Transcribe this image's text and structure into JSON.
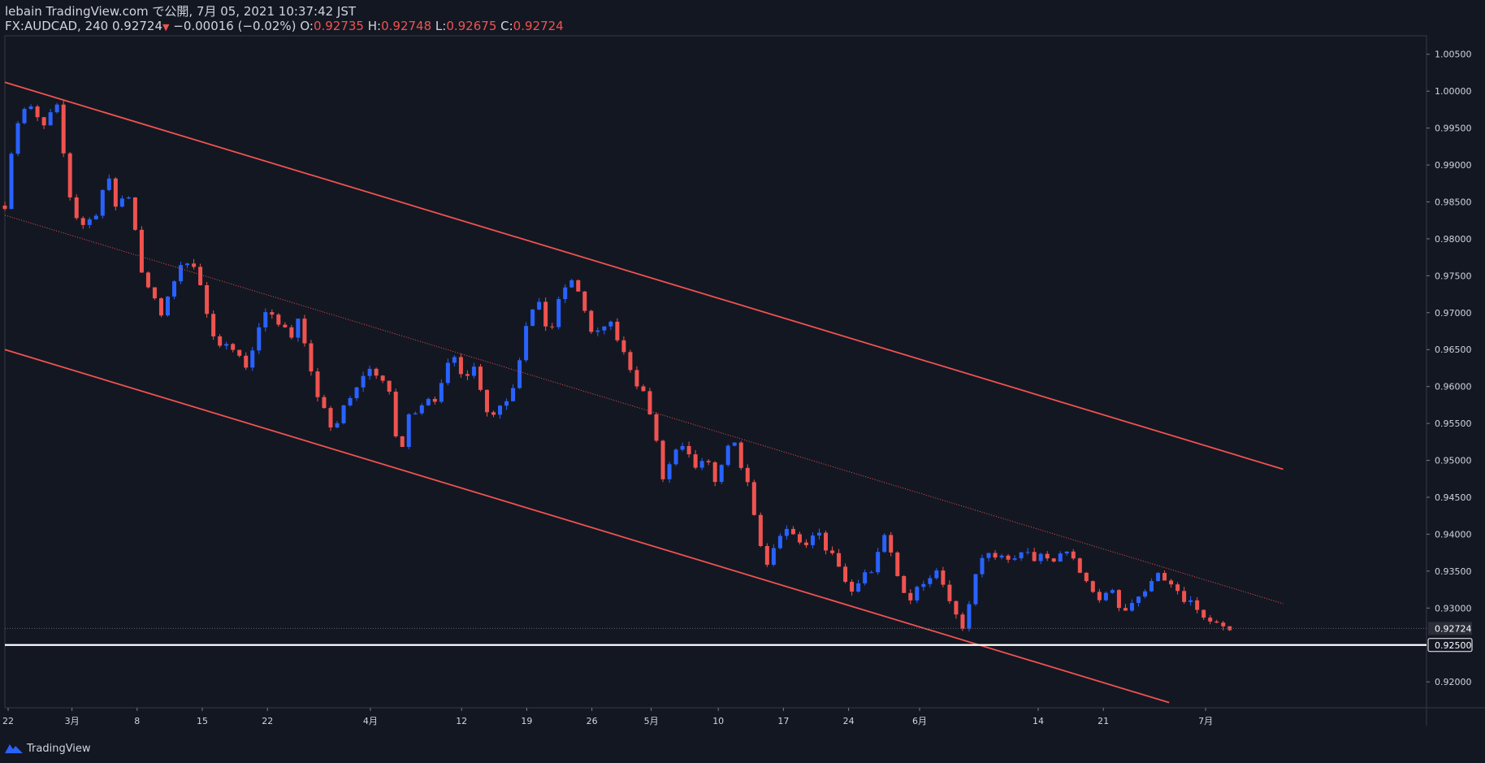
{
  "header": {
    "line1": "lebain TradingView.com で公開, 7月 05, 2021 10:37:42 JST",
    "symbol": "FX:AUDCAD, 240 0.92724",
    "change": "−0.00016 (−0.02%)",
    "open_label": "O:",
    "open": "0.92735",
    "high_label": "H:",
    "high": "0.92748",
    "low_label": "L:",
    "low": "0.92675",
    "close_label": "C:",
    "close": "0.92724",
    "down_arrow": "▼"
  },
  "footer": {
    "logo_text": "TradingView",
    "logo_icon": "tradingview-logo-icon"
  },
  "colors": {
    "background": "#131722",
    "up": "#2962ff",
    "down": "#ef5350",
    "channel": "#ef5350",
    "support": "#ffffff",
    "text": "#d1d4dc",
    "grid": "#2a2e39"
  },
  "chart_data": {
    "type": "candlestick",
    "symbol": "FX:AUDCAD",
    "timeframe": "240",
    "ylim": [
      0.9165,
      1.0075
    ],
    "y_ticks": [
      "1.00500",
      "1.00000",
      "0.99500",
      "0.99000",
      "0.98500",
      "0.98000",
      "0.97500",
      "0.97000",
      "0.96500",
      "0.96000",
      "0.95500",
      "0.95000",
      "0.94500",
      "0.94000",
      "0.93500",
      "0.93000",
      "0.92000"
    ],
    "x_ticks": [
      {
        "label": "22",
        "t": 0.5
      },
      {
        "label": "3月",
        "t": 10.3
      },
      {
        "label": "8",
        "t": 20.3
      },
      {
        "label": "15",
        "t": 30.3
      },
      {
        "label": "22",
        "t": 40.3
      },
      {
        "label": "4月",
        "t": 56.1
      },
      {
        "label": "12",
        "t": 70.1
      },
      {
        "label": "19",
        "t": 80.1
      },
      {
        "label": "26",
        "t": 90.1
      },
      {
        "label": "5月",
        "t": 99.2
      },
      {
        "label": "10",
        "t": 109.5
      },
      {
        "label": "17",
        "t": 119.5
      },
      {
        "label": "24",
        "t": 129.5
      },
      {
        "label": "6月",
        "t": 140.4
      },
      {
        "label": "14",
        "t": 158.6
      },
      {
        "label": "21",
        "t": 168.6
      },
      {
        "label": "7月",
        "t": 184.3
      }
    ],
    "price_path": [
      [
        0,
        0.9845
      ],
      [
        0.6,
        0.9895
      ],
      [
        1.3,
        0.9935
      ],
      [
        2.3,
        0.9968
      ],
      [
        3.6,
        0.9982
      ],
      [
        4.8,
        0.9965
      ],
      [
        6.0,
        0.9952
      ],
      [
        7.2,
        0.9972
      ],
      [
        8.0,
        0.9978
      ],
      [
        8.6,
        0.9945
      ],
      [
        9.4,
        0.9885
      ],
      [
        10.2,
        0.9848
      ],
      [
        11.2,
        0.9825
      ],
      [
        12.2,
        0.9818
      ],
      [
        13.2,
        0.9828
      ],
      [
        14.3,
        0.9838
      ],
      [
        15.3,
        0.9878
      ],
      [
        16.1,
        0.9878
      ],
      [
        17.0,
        0.9845
      ],
      [
        17.8,
        0.985
      ],
      [
        18.6,
        0.9868
      ],
      [
        19.4,
        0.9848
      ],
      [
        20.1,
        0.9808
      ],
      [
        20.8,
        0.9765
      ],
      [
        21.6,
        0.9732
      ],
      [
        22.5,
        0.973
      ],
      [
        23.2,
        0.9715
      ],
      [
        23.8,
        0.9685
      ],
      [
        24.7,
        0.9718
      ],
      [
        25.7,
        0.9738
      ],
      [
        26.7,
        0.9758
      ],
      [
        27.7,
        0.9768
      ],
      [
        28.6,
        0.9775
      ],
      [
        29.6,
        0.9752
      ],
      [
        30.4,
        0.972
      ],
      [
        31.2,
        0.969
      ],
      [
        32.2,
        0.9658
      ],
      [
        33.2,
        0.965
      ],
      [
        34.2,
        0.9665
      ],
      [
        35.3,
        0.965
      ],
      [
        36.3,
        0.9635
      ],
      [
        37.3,
        0.9625
      ],
      [
        38.0,
        0.965
      ],
      [
        38.9,
        0.9678
      ],
      [
        39.9,
        0.97
      ],
      [
        40.9,
        0.9695
      ],
      [
        41.9,
        0.9683
      ],
      [
        42.9,
        0.9685
      ],
      [
        43.8,
        0.9664
      ],
      [
        44.8,
        0.9695
      ],
      [
        45.8,
        0.967
      ],
      [
        46.8,
        0.963
      ],
      [
        47.6,
        0.9585
      ],
      [
        48.6,
        0.9578
      ],
      [
        49.6,
        0.955
      ],
      [
        50.6,
        0.9542
      ],
      [
        51.6,
        0.9565
      ],
      [
        52.6,
        0.958
      ],
      [
        53.6,
        0.9588
      ],
      [
        54.6,
        0.961
      ],
      [
        55.6,
        0.9625
      ],
      [
        56.5,
        0.962
      ],
      [
        57.5,
        0.9615
      ],
      [
        58.2,
        0.9605
      ],
      [
        59.2,
        0.9585
      ],
      [
        60.2,
        0.952
      ],
      [
        61.0,
        0.9518
      ],
      [
        61.6,
        0.9555
      ],
      [
        62.4,
        0.9565
      ],
      [
        63.4,
        0.957
      ],
      [
        64.4,
        0.9582
      ],
      [
        65.4,
        0.9588
      ],
      [
        66.4,
        0.958
      ],
      [
        67.2,
        0.9608
      ],
      [
        68.0,
        0.9628
      ],
      [
        68.8,
        0.9642
      ],
      [
        69.6,
        0.963
      ],
      [
        70.4,
        0.9612
      ],
      [
        71.2,
        0.962
      ],
      [
        72.0,
        0.9626
      ],
      [
        72.8,
        0.9605
      ],
      [
        73.6,
        0.958
      ],
      [
        74.4,
        0.9555
      ],
      [
        75.2,
        0.9565
      ],
      [
        76.0,
        0.9575
      ],
      [
        76.8,
        0.958
      ],
      [
        77.6,
        0.959
      ],
      [
        78.4,
        0.9612
      ],
      [
        79.2,
        0.9648
      ],
      [
        80.0,
        0.9685
      ],
      [
        80.8,
        0.97
      ],
      [
        81.8,
        0.9715
      ],
      [
        82.6,
        0.9696
      ],
      [
        83.4,
        0.967
      ],
      [
        84.2,
        0.9685
      ],
      [
        85.2,
        0.9722
      ],
      [
        86.2,
        0.9738
      ],
      [
        87.2,
        0.9742
      ],
      [
        88.0,
        0.973
      ],
      [
        88.8,
        0.971
      ],
      [
        89.6,
        0.968
      ],
      [
        90.4,
        0.9665
      ],
      [
        91.2,
        0.9675
      ],
      [
        92.0,
        0.9682
      ],
      [
        92.8,
        0.9688
      ],
      [
        93.6,
        0.967
      ],
      [
        94.4,
        0.9658
      ],
      [
        95.2,
        0.964
      ],
      [
        96.0,
        0.9625
      ],
      [
        96.8,
        0.9605
      ],
      [
        97.6,
        0.96
      ],
      [
        98.4,
        0.9585
      ],
      [
        99.4,
        0.9548
      ],
      [
        100.2,
        0.9515
      ],
      [
        101.0,
        0.9475
      ],
      [
        101.8,
        0.949
      ],
      [
        102.8,
        0.951
      ],
      [
        103.8,
        0.9518
      ],
      [
        104.8,
        0.9508
      ],
      [
        105.8,
        0.949
      ],
      [
        106.8,
        0.9495
      ],
      [
        107.8,
        0.9498
      ],
      [
        108.8,
        0.9475
      ],
      [
        109.6,
        0.9472
      ],
      [
        110.4,
        0.951
      ],
      [
        111.4,
        0.9532
      ],
      [
        112.0,
        0.952
      ],
      [
        112.8,
        0.9488
      ],
      [
        113.6,
        0.9485
      ],
      [
        114.2,
        0.9462
      ],
      [
        115.0,
        0.9425
      ],
      [
        115.8,
        0.9395
      ],
      [
        116.6,
        0.936
      ],
      [
        117.4,
        0.9355
      ],
      [
        118.2,
        0.9385
      ],
      [
        119.2,
        0.9402
      ],
      [
        120.2,
        0.9405
      ],
      [
        121.0,
        0.94
      ],
      [
        121.8,
        0.9388
      ],
      [
        122.6,
        0.9378
      ],
      [
        123.4,
        0.9385
      ],
      [
        124.2,
        0.94
      ],
      [
        125.0,
        0.9398
      ],
      [
        125.8,
        0.9385
      ],
      [
        126.6,
        0.9372
      ],
      [
        127.4,
        0.937
      ],
      [
        128.2,
        0.9355
      ],
      [
        129.0,
        0.9335
      ],
      [
        129.8,
        0.932
      ],
      [
        130.6,
        0.933
      ],
      [
        131.4,
        0.9345
      ],
      [
        132.2,
        0.935
      ],
      [
        133.2,
        0.9348
      ],
      [
        134.0,
        0.9375
      ],
      [
        134.8,
        0.9398
      ],
      [
        135.6,
        0.9385
      ],
      [
        136.4,
        0.936
      ],
      [
        137.2,
        0.9335
      ],
      [
        138.0,
        0.932
      ],
      [
        138.8,
        0.931
      ],
      [
        139.6,
        0.9325
      ],
      [
        140.4,
        0.9335
      ],
      [
        141.2,
        0.933
      ],
      [
        142.0,
        0.9345
      ],
      [
        142.8,
        0.936
      ],
      [
        143.6,
        0.934
      ],
      [
        144.4,
        0.9325
      ],
      [
        145.2,
        0.931
      ],
      [
        146.0,
        0.929
      ],
      [
        146.8,
        0.927
      ],
      [
        147.6,
        0.929
      ],
      [
        148.4,
        0.9325
      ],
      [
        149.2,
        0.9355
      ],
      [
        150.0,
        0.937
      ],
      [
        150.8,
        0.9375
      ],
      [
        151.8,
        0.9365
      ],
      [
        152.8,
        0.9368
      ],
      [
        153.8,
        0.9362
      ],
      [
        154.8,
        0.937
      ],
      [
        155.8,
        0.9372
      ],
      [
        156.8,
        0.9375
      ],
      [
        157.8,
        0.9365
      ],
      [
        158.8,
        0.9372
      ],
      [
        159.8,
        0.9365
      ],
      [
        160.8,
        0.936
      ],
      [
        161.8,
        0.9372
      ],
      [
        162.8,
        0.938
      ],
      [
        163.8,
        0.9368
      ],
      [
        164.8,
        0.9355
      ],
      [
        165.6,
        0.9335
      ],
      [
        166.4,
        0.933
      ],
      [
        167.2,
        0.9318
      ],
      [
        168.0,
        0.931
      ],
      [
        168.8,
        0.9322
      ],
      [
        169.6,
        0.933
      ],
      [
        170.4,
        0.9312
      ],
      [
        171.2,
        0.9298
      ],
      [
        172.2,
        0.93
      ],
      [
        173.2,
        0.931
      ],
      [
        174.2,
        0.9318
      ],
      [
        175.2,
        0.932
      ],
      [
        176.0,
        0.934
      ],
      [
        176.8,
        0.9352
      ],
      [
        177.6,
        0.9345
      ],
      [
        178.4,
        0.9325
      ],
      [
        179.2,
        0.933
      ],
      [
        180.0,
        0.9322
      ],
      [
        180.8,
        0.931
      ],
      [
        181.6,
        0.93
      ],
      [
        182.4,
        0.9312
      ],
      [
        183.2,
        0.9295
      ],
      [
        184.0,
        0.9285
      ],
      [
        184.8,
        0.9282
      ],
      [
        185.6,
        0.928
      ],
      [
        186.4,
        0.9275
      ],
      [
        187.2,
        0.927
      ],
      [
        188.0,
        0.9268
      ],
      [
        188.8,
        0.9272
      ]
    ],
    "channel_upper": {
      "t0": 0,
      "p0": 1.0012,
      "t1": 196.2,
      "p1": 0.9488
    },
    "channel_mid_dotted": {
      "t0": 0,
      "p0": 0.9832,
      "t1": 196.2,
      "p1": 0.9306
    },
    "channel_lower": {
      "t0": 0,
      "p0": 0.965,
      "t1": 178.7,
      "p1": 0.9172
    },
    "support_line": {
      "price": 0.925,
      "label": "0.92500"
    },
    "last_price": {
      "price": 0.92724,
      "label": "0.92724"
    }
  }
}
